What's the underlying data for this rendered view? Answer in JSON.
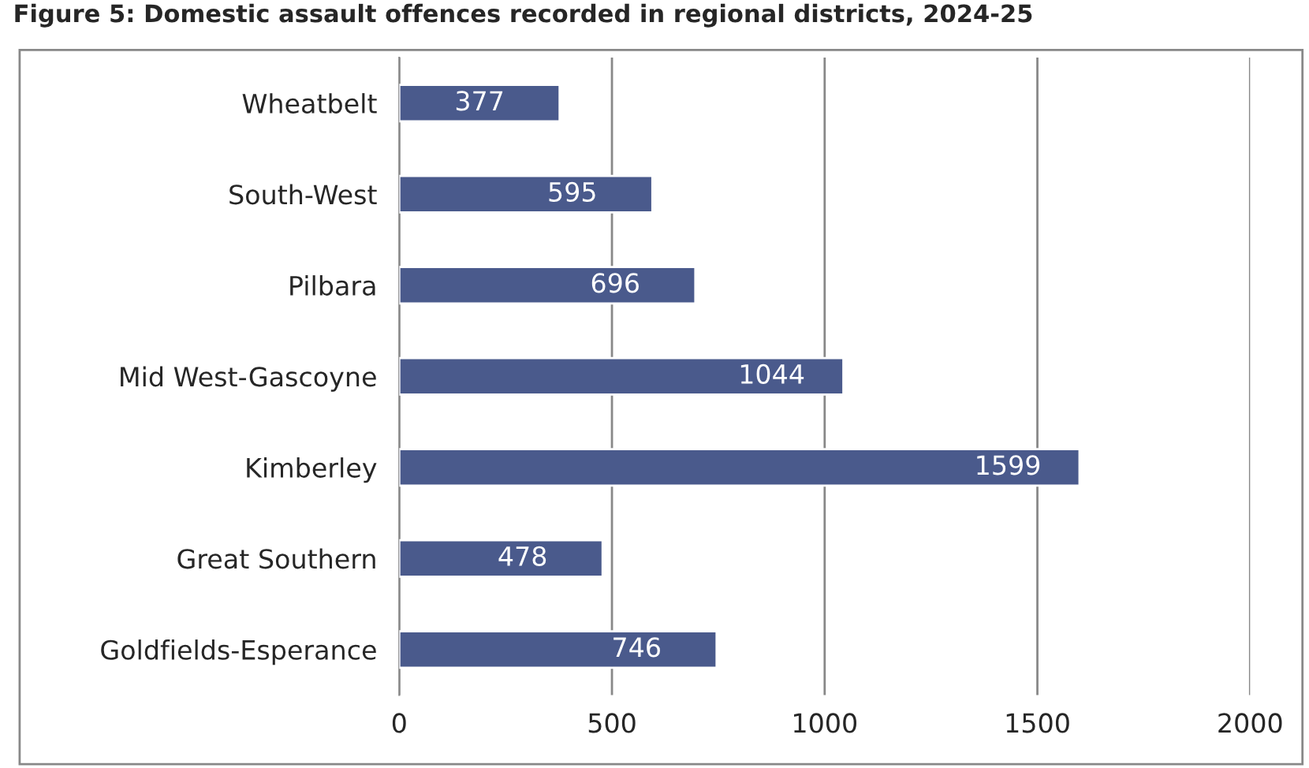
{
  "chart_data": {
    "type": "bar",
    "orientation": "horizontal",
    "title": "Figure 5: Domestic assault offences recorded in regional districts, 2024-25",
    "categories": [
      "Wheatbelt",
      "South-West",
      "Pilbara",
      "Mid West-Gascoyne",
      "Kimberley",
      "Great Southern",
      "Goldfields-Esperance"
    ],
    "values": [
      377,
      595,
      696,
      1044,
      1599,
      478,
      746
    ],
    "color": "#4a5a8c",
    "data_labels": true,
    "xlim": [
      0,
      2000
    ],
    "xticks": [
      0,
      500,
      1000,
      1500,
      2000
    ],
    "grid": "x",
    "legend": false
  }
}
